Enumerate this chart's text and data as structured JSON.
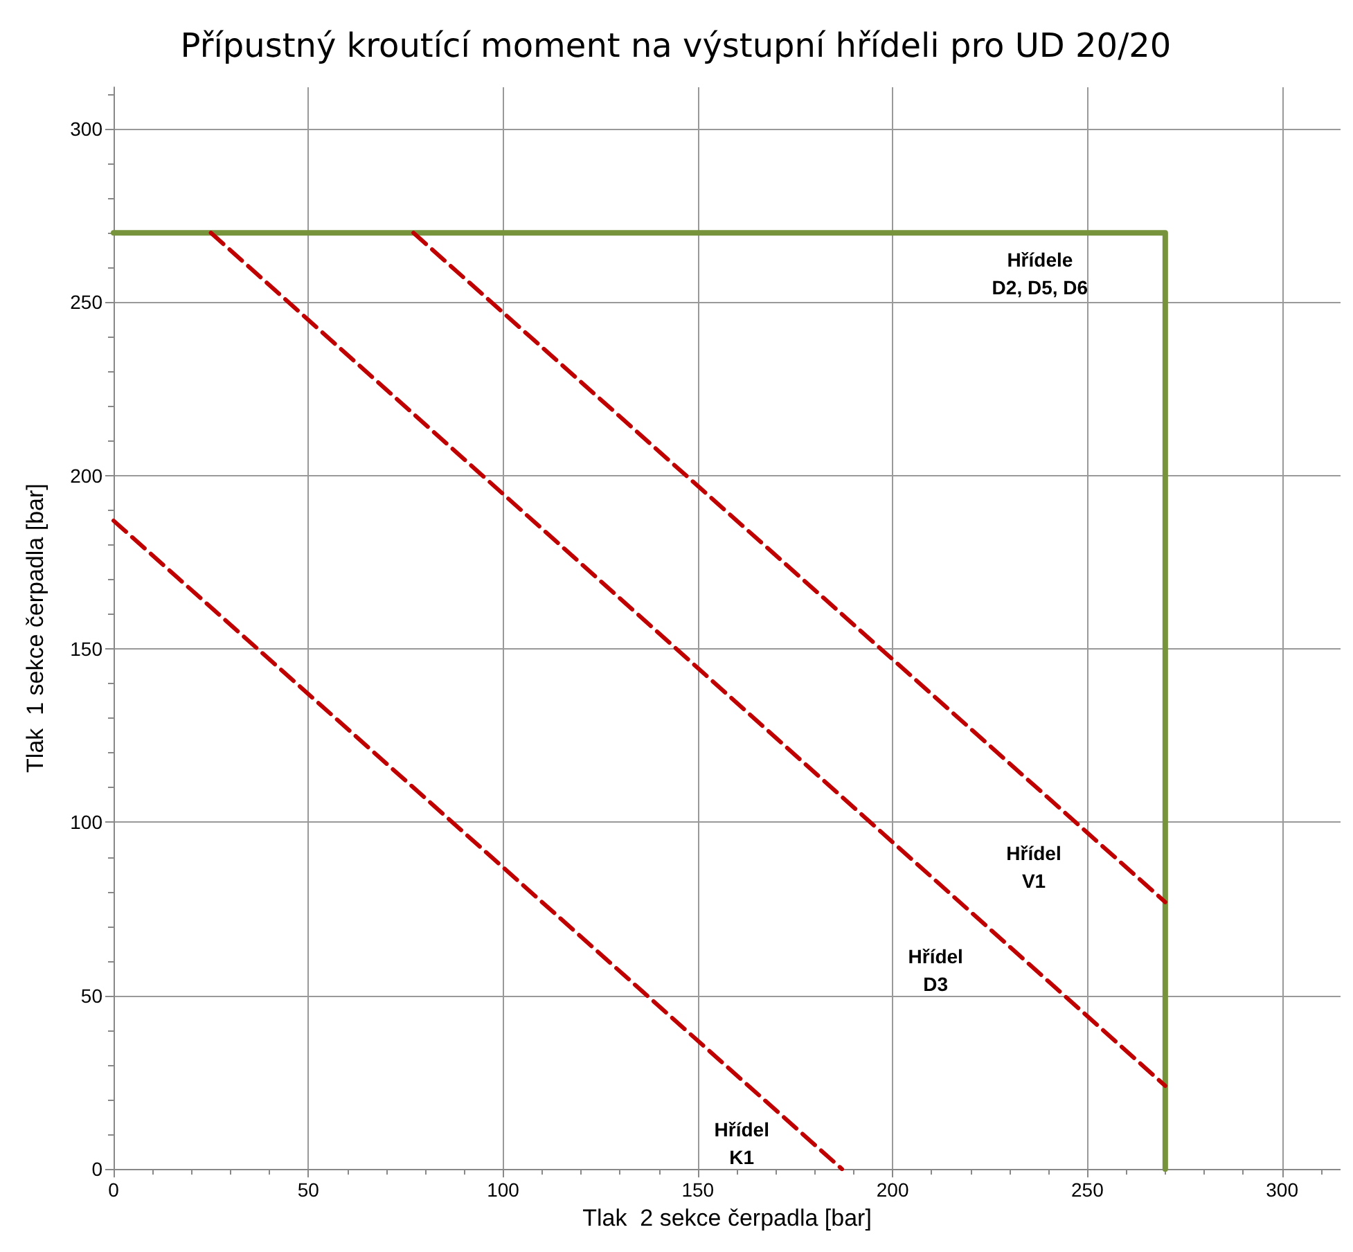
{
  "chart_data": {
    "type": "line",
    "title": "Přípustný kroutící moment na výstupní hřídeli pro UD 20/20",
    "xlabel": "Tlak  2 sekce čerpadla [bar]",
    "ylabel": "Tlak  1 sekce čerpadla [bar]",
    "xlim": [
      0,
      315
    ],
    "ylim": [
      0,
      312
    ],
    "xticks": [
      0,
      50,
      100,
      150,
      200,
      250,
      300
    ],
    "yticks": [
      0,
      50,
      100,
      150,
      200,
      250,
      300
    ],
    "grid": true,
    "marker": "none",
    "series": [
      {
        "color": "#77933c",
        "line_style": "solid",
        "x": [
          0,
          270,
          270
        ],
        "values": [
          270,
          270,
          0
        ]
      },
      {
        "color": "#c00000",
        "line_style": "dashed",
        "x": [
          0,
          187
        ],
        "values": [
          187,
          0
        ]
      },
      {
        "color": "#c00000",
        "line_style": "dashed",
        "x": [
          25,
          270
        ],
        "values": [
          270,
          24
        ]
      },
      {
        "color": "#c00000",
        "line_style": "dashed",
        "x": [
          77,
          270
        ],
        "values": [
          270,
          77
        ]
      }
    ],
    "annotations": [
      "Hřídele\nD2, D5, D6",
      "Hřídel\nV1",
      "Hřídel\nD3",
      "Hřídel\nK1"
    ]
  }
}
